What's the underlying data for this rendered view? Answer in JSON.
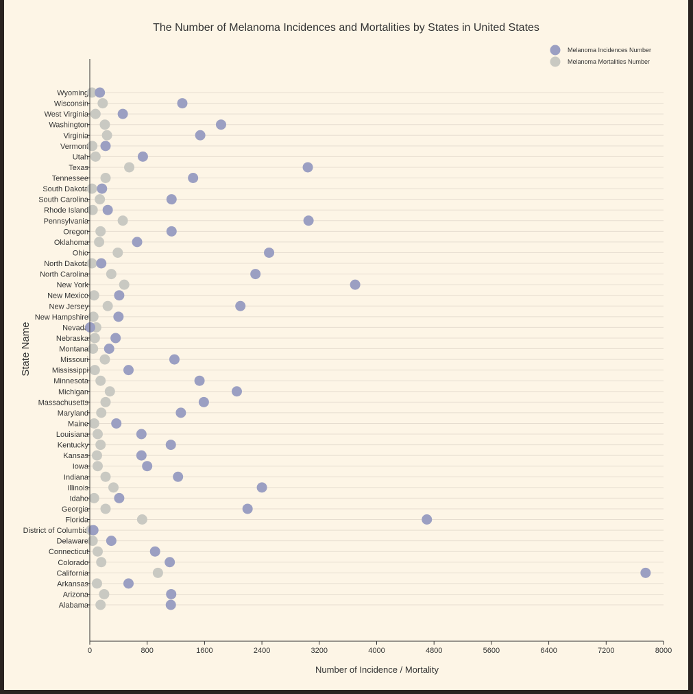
{
  "chart_data": {
    "type": "scatter",
    "title": "The Number of Melanoma Incidences and Mortalities by States in United States",
    "xlabel": "Number of Incidence / Mortality",
    "ylabel": "State Name",
    "xlim": [
      0,
      8000
    ],
    "xticks": [
      "0",
      "800",
      "1600",
      "2400",
      "3200",
      "4000",
      "4800",
      "5600",
      "6400",
      "7200",
      "8000"
    ],
    "grid": "horizontal",
    "legend_position": "top-right",
    "categories": [
      "Alabama",
      "Arizona",
      "Arkansas",
      "California",
      "Colorado",
      "Connecticut",
      "Delaware",
      "District of Columbia",
      "Florida",
      "Georgia",
      "Idaho",
      "Illinois",
      "Indiana",
      "Iowa",
      "Kansas",
      "Kentucky",
      "Louisiana",
      "Maine",
      "Maryland",
      "Massachusetts",
      "Michigan",
      "Minnesota",
      "Mississippi",
      "Missouri",
      "Montana",
      "Nebraska",
      "Nevada",
      "New Hampshire",
      "New Jersey",
      "New Mexico",
      "New York",
      "North Carolina",
      "North Dakota",
      "Ohio",
      "Oklahoma",
      "Oregon",
      "Pennsylvania",
      "Rhode Island",
      "South Carolina",
      "South Dakota",
      "Tennessee",
      "Texas",
      "Utah",
      "Vermont",
      "Virginia",
      "Washington",
      "West Virginia",
      "Wisconsin",
      "Wyoming"
    ],
    "series": [
      {
        "name": "Melanoma Incidences Number",
        "color": "#9b9fc2",
        "values": [
          1130,
          1135,
          540,
          7750,
          1115,
          910,
          300,
          50,
          4700,
          2200,
          410,
          2400,
          1230,
          800,
          720,
          1130,
          720,
          370,
          1270,
          1590,
          2050,
          1530,
          540,
          1180,
          270,
          360,
          5,
          400,
          2100,
          410,
          3700,
          2310,
          160,
          2500,
          660,
          1140,
          3050,
          250,
          1140,
          170,
          1440,
          3040,
          740,
          220,
          1540,
          1830,
          460,
          1290,
          140
        ]
      },
      {
        "name": "Melanoma Mortalities Number",
        "color": "#c9c9c2",
        "values": [
          150,
          200,
          100,
          950,
          160,
          110,
          40,
          15,
          730,
          220,
          60,
          330,
          220,
          110,
          100,
          150,
          110,
          60,
          160,
          220,
          280,
          150,
          70,
          210,
          45,
          70,
          90,
          50,
          250,
          60,
          480,
          300,
          30,
          390,
          130,
          150,
          460,
          40,
          140,
          30,
          220,
          550,
          80,
          35,
          240,
          210,
          80,
          180,
          30
        ]
      }
    ]
  }
}
